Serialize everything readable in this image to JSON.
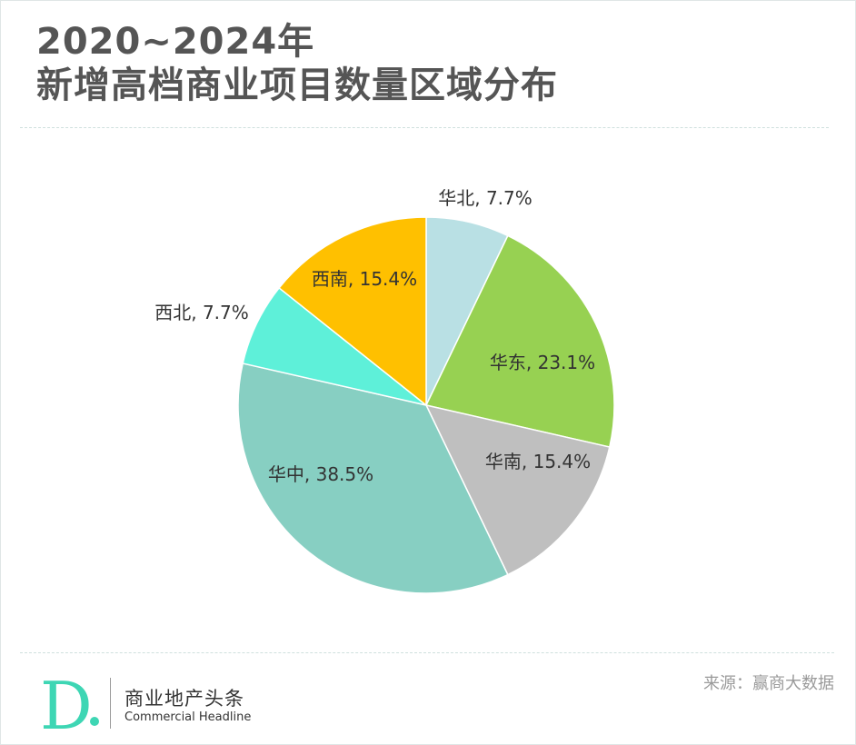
{
  "header": {
    "title_line1": "2020~2024年",
    "title_line2": "新增高档商业项目数量区域分布"
  },
  "chart_data": {
    "type": "pie",
    "title": "2020~2024年 新增高档商业项目数量区域分布",
    "start_angle_deg": 0,
    "direction": "clockwise",
    "slices": [
      {
        "name": "华北",
        "value": 7.7,
        "label": "华北, 7.7%",
        "color": "#b9e0e4",
        "label_outside": true
      },
      {
        "name": "华东",
        "value": 23.1,
        "label": "华东, 23.1%",
        "color": "#97d152",
        "label_outside": false
      },
      {
        "name": "华南",
        "value": 15.4,
        "label": "华南, 15.4%",
        "color": "#bfbfbf",
        "label_outside": false
      },
      {
        "name": "华中",
        "value": 38.5,
        "label": "华中, 38.5%",
        "color": "#87cfc2",
        "label_outside": false
      },
      {
        "name": "西北",
        "value": 7.7,
        "label": "西北, 7.7%",
        "color": "#5ef0d9",
        "label_outside": true
      },
      {
        "name": "西南",
        "value": 15.4,
        "label": "西南, 15.4%",
        "color": "#ffc000",
        "label_outside": false
      }
    ]
  },
  "footer": {
    "logo_letter": "D",
    "brand_cn": "商业地产头条",
    "brand_en": "Commercial Headline",
    "source": "来源：赢商大数据",
    "accent_color": "#3ed6b4"
  }
}
